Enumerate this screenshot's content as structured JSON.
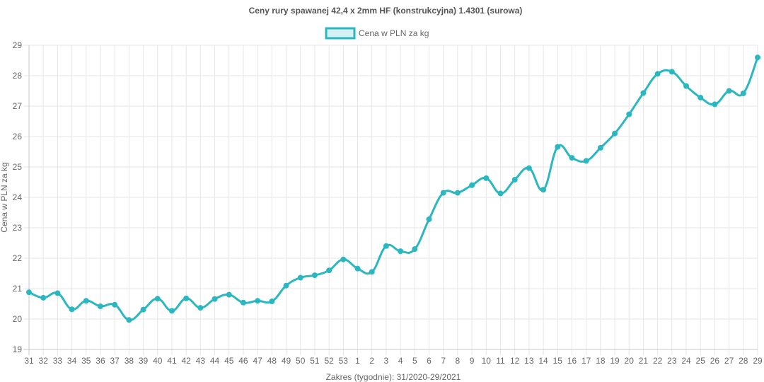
{
  "chart_data": {
    "type": "line",
    "title": "Ceny rury spawanej  42,4 x 2mm HF (konstrukcyjna) 1.4301 (surowa)",
    "xlabel": "Zakres (tygodnie): 31/2020-29/2021",
    "ylabel": "Cena w PLN za kg",
    "ylim": [
      19,
      29
    ],
    "yticks": [
      "19",
      "20",
      "21",
      "22",
      "23",
      "24",
      "25",
      "26",
      "27",
      "28",
      "29"
    ],
    "grid": true,
    "legend_position": "top",
    "categories": [
      "31",
      "32",
      "33",
      "34",
      "35",
      "36",
      "37",
      "38",
      "39",
      "40",
      "41",
      "42",
      "43",
      "44",
      "45",
      "46",
      "47",
      "48",
      "49",
      "50",
      "51",
      "52",
      "53",
      "1",
      "2",
      "3",
      "4",
      "5",
      "6",
      "7",
      "8",
      "9",
      "10",
      "11",
      "12",
      "13",
      "14",
      "15",
      "16",
      "17",
      "18",
      "19",
      "20",
      "21",
      "22",
      "23",
      "24",
      "25",
      "26",
      "27",
      "28",
      "29"
    ],
    "series": [
      {
        "name": "Cena w PLN za kg",
        "color": "#2bb7c0",
        "fill": "#d4f1f3",
        "values": [
          20.88,
          20.7,
          20.85,
          20.32,
          20.6,
          20.42,
          20.47,
          19.97,
          20.31,
          20.67,
          20.27,
          20.68,
          20.37,
          20.66,
          20.8,
          20.54,
          20.6,
          20.58,
          21.1,
          21.36,
          21.44,
          21.6,
          21.96,
          21.66,
          21.55,
          22.4,
          22.23,
          22.3,
          23.28,
          24.15,
          24.15,
          24.4,
          24.63,
          24.13,
          24.58,
          24.96,
          24.25,
          25.66,
          25.3,
          25.2,
          25.63,
          26.1,
          26.73,
          27.43,
          28.06,
          28.13,
          27.66,
          27.28,
          27.06,
          27.5,
          27.42,
          28.6
        ]
      }
    ]
  }
}
